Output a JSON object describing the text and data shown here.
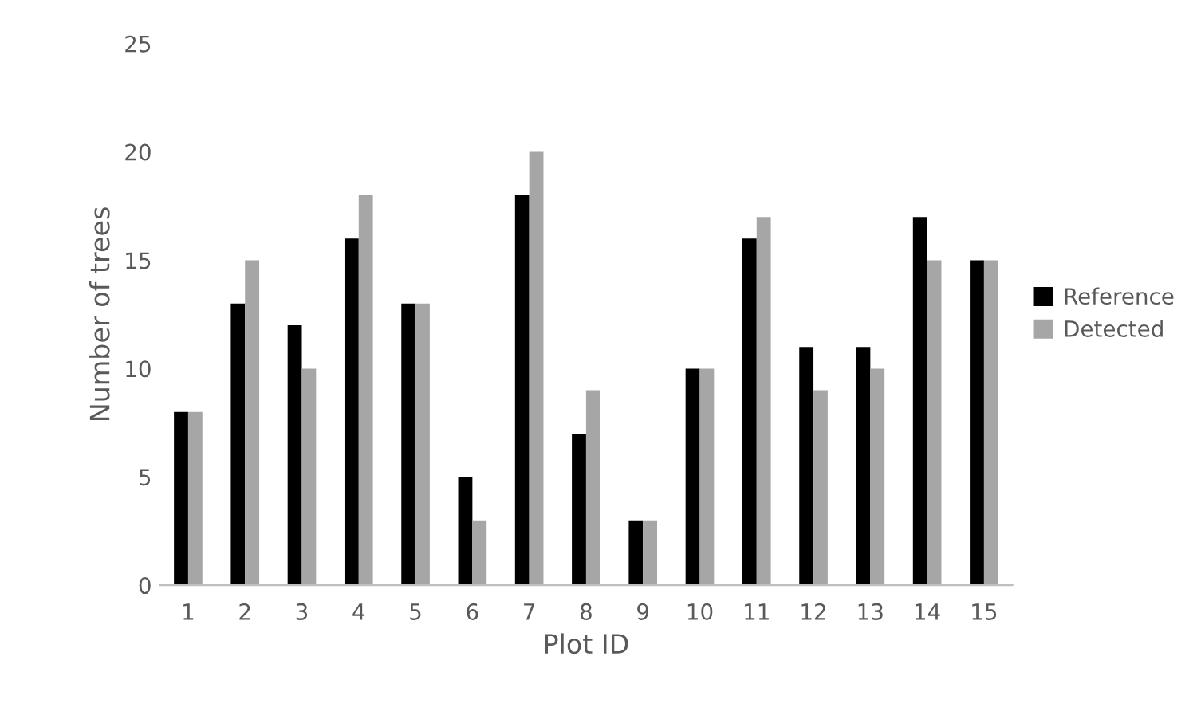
{
  "chart_data": {
    "type": "bar",
    "xlabel": "Plot ID",
    "ylabel": "Number of trees",
    "categories": [
      "1",
      "2",
      "3",
      "4",
      "5",
      "6",
      "7",
      "8",
      "9",
      "10",
      "11",
      "12",
      "13",
      "14",
      "15"
    ],
    "series": [
      {
        "name": "Reference",
        "color": "#000000",
        "values": [
          8,
          13,
          12,
          16,
          13,
          5,
          18,
          7,
          3,
          10,
          16,
          11,
          11,
          17,
          15
        ]
      },
      {
        "name": "Detected",
        "color": "#a6a6a6",
        "values": [
          8,
          15,
          10,
          18,
          13,
          3,
          20,
          9,
          3,
          10,
          17,
          9,
          10,
          15,
          15
        ]
      }
    ],
    "ylim": [
      0,
      25
    ],
    "yticks": [
      0,
      5,
      10,
      15,
      20,
      25
    ],
    "grid": false,
    "legend": "right"
  }
}
